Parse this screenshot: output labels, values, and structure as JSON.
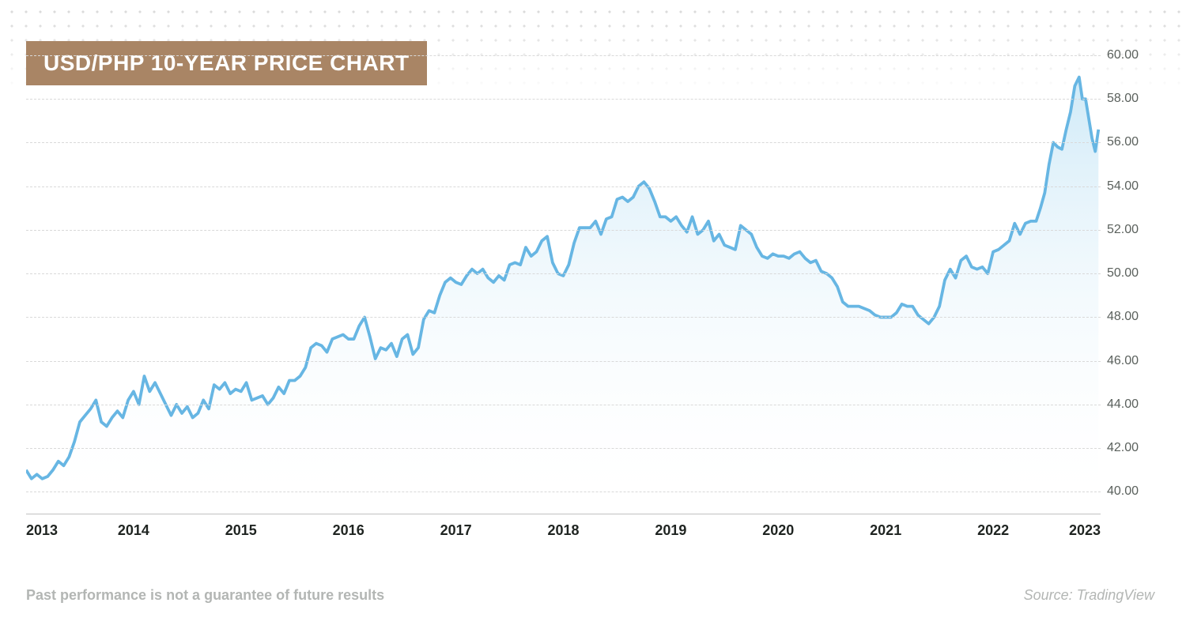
{
  "title": "USD/PHP 10-YEAR PRICE CHART",
  "title_badge_bg": "#a98565",
  "title_badge_color": "#ffffff",
  "title_fontsize": 28,
  "disclaimer": "Past performance is not a guarantee of future results",
  "source": "Source: TradingView",
  "chart": {
    "type": "area",
    "line_color": "#67b6e3",
    "line_width": 2.2,
    "fill_top": "#c7e6f6",
    "fill_bottom": "#ffffff",
    "grid_color": "#d9d9d9",
    "axis_color": "#c0c0c0",
    "ylabel_color": "#5a605c",
    "ylabel_fontsize": 16,
    "xlabel_color": "#1f2421",
    "xlabel_fontsize": 18,
    "background_color": "#ffffff",
    "ylim": [
      39,
      60
    ],
    "yticks": [
      40.0,
      42.0,
      44.0,
      46.0,
      48.0,
      50.0,
      52.0,
      54.0,
      56.0,
      58.0,
      60.0
    ],
    "xlim": [
      2013,
      2023
    ],
    "xticks": [
      2013,
      2014,
      2015,
      2016,
      2017,
      2018,
      2019,
      2020,
      2021,
      2022,
      2023
    ],
    "series": [
      {
        "x": 2013.0,
        "y": 41.0
      },
      {
        "x": 2013.05,
        "y": 40.6
      },
      {
        "x": 2013.1,
        "y": 40.8
      },
      {
        "x": 2013.15,
        "y": 40.6
      },
      {
        "x": 2013.2,
        "y": 40.7
      },
      {
        "x": 2013.25,
        "y": 41.0
      },
      {
        "x": 2013.3,
        "y": 41.4
      },
      {
        "x": 2013.35,
        "y": 41.2
      },
      {
        "x": 2013.4,
        "y": 41.6
      },
      {
        "x": 2013.45,
        "y": 42.3
      },
      {
        "x": 2013.5,
        "y": 43.2
      },
      {
        "x": 2013.55,
        "y": 43.5
      },
      {
        "x": 2013.6,
        "y": 43.8
      },
      {
        "x": 2013.65,
        "y": 44.2
      },
      {
        "x": 2013.7,
        "y": 43.2
      },
      {
        "x": 2013.75,
        "y": 43.0
      },
      {
        "x": 2013.8,
        "y": 43.4
      },
      {
        "x": 2013.85,
        "y": 43.7
      },
      {
        "x": 2013.9,
        "y": 43.4
      },
      {
        "x": 2013.95,
        "y": 44.2
      },
      {
        "x": 2014.0,
        "y": 44.6
      },
      {
        "x": 2014.05,
        "y": 44.0
      },
      {
        "x": 2014.1,
        "y": 45.3
      },
      {
        "x": 2014.15,
        "y": 44.6
      },
      {
        "x": 2014.2,
        "y": 45.0
      },
      {
        "x": 2014.25,
        "y": 44.5
      },
      {
        "x": 2014.3,
        "y": 44.0
      },
      {
        "x": 2014.35,
        "y": 43.5
      },
      {
        "x": 2014.4,
        "y": 44.0
      },
      {
        "x": 2014.45,
        "y": 43.6
      },
      {
        "x": 2014.5,
        "y": 43.9
      },
      {
        "x": 2014.55,
        "y": 43.4
      },
      {
        "x": 2014.6,
        "y": 43.6
      },
      {
        "x": 2014.65,
        "y": 44.2
      },
      {
        "x": 2014.7,
        "y": 43.8
      },
      {
        "x": 2014.75,
        "y": 44.9
      },
      {
        "x": 2014.8,
        "y": 44.7
      },
      {
        "x": 2014.85,
        "y": 45.0
      },
      {
        "x": 2014.9,
        "y": 44.5
      },
      {
        "x": 2014.95,
        "y": 44.7
      },
      {
        "x": 2015.0,
        "y": 44.6
      },
      {
        "x": 2015.05,
        "y": 45.0
      },
      {
        "x": 2015.1,
        "y": 44.2
      },
      {
        "x": 2015.15,
        "y": 44.3
      },
      {
        "x": 2015.2,
        "y": 44.4
      },
      {
        "x": 2015.25,
        "y": 44.0
      },
      {
        "x": 2015.3,
        "y": 44.3
      },
      {
        "x": 2015.35,
        "y": 44.8
      },
      {
        "x": 2015.4,
        "y": 44.5
      },
      {
        "x": 2015.45,
        "y": 45.1
      },
      {
        "x": 2015.5,
        "y": 45.1
      },
      {
        "x": 2015.55,
        "y": 45.3
      },
      {
        "x": 2015.6,
        "y": 45.7
      },
      {
        "x": 2015.65,
        "y": 46.6
      },
      {
        "x": 2015.7,
        "y": 46.8
      },
      {
        "x": 2015.75,
        "y": 46.7
      },
      {
        "x": 2015.8,
        "y": 46.4
      },
      {
        "x": 2015.85,
        "y": 47.0
      },
      {
        "x": 2015.9,
        "y": 47.1
      },
      {
        "x": 2015.95,
        "y": 47.2
      },
      {
        "x": 2016.0,
        "y": 47.0
      },
      {
        "x": 2016.05,
        "y": 47.0
      },
      {
        "x": 2016.1,
        "y": 47.6
      },
      {
        "x": 2016.15,
        "y": 48.0
      },
      {
        "x": 2016.2,
        "y": 47.1
      },
      {
        "x": 2016.25,
        "y": 46.1
      },
      {
        "x": 2016.3,
        "y": 46.6
      },
      {
        "x": 2016.35,
        "y": 46.5
      },
      {
        "x": 2016.4,
        "y": 46.8
      },
      {
        "x": 2016.45,
        "y": 46.2
      },
      {
        "x": 2016.5,
        "y": 47.0
      },
      {
        "x": 2016.55,
        "y": 47.2
      },
      {
        "x": 2016.6,
        "y": 46.3
      },
      {
        "x": 2016.65,
        "y": 46.6
      },
      {
        "x": 2016.7,
        "y": 47.9
      },
      {
        "x": 2016.75,
        "y": 48.3
      },
      {
        "x": 2016.8,
        "y": 48.2
      },
      {
        "x": 2016.85,
        "y": 49.0
      },
      {
        "x": 2016.9,
        "y": 49.6
      },
      {
        "x": 2016.95,
        "y": 49.8
      },
      {
        "x": 2017.0,
        "y": 49.6
      },
      {
        "x": 2017.05,
        "y": 49.5
      },
      {
        "x": 2017.1,
        "y": 49.9
      },
      {
        "x": 2017.15,
        "y": 50.2
      },
      {
        "x": 2017.2,
        "y": 50.0
      },
      {
        "x": 2017.25,
        "y": 50.2
      },
      {
        "x": 2017.3,
        "y": 49.8
      },
      {
        "x": 2017.35,
        "y": 49.6
      },
      {
        "x": 2017.4,
        "y": 49.9
      },
      {
        "x": 2017.45,
        "y": 49.7
      },
      {
        "x": 2017.5,
        "y": 50.4
      },
      {
        "x": 2017.55,
        "y": 50.5
      },
      {
        "x": 2017.6,
        "y": 50.4
      },
      {
        "x": 2017.65,
        "y": 51.2
      },
      {
        "x": 2017.7,
        "y": 50.8
      },
      {
        "x": 2017.75,
        "y": 51.0
      },
      {
        "x": 2017.8,
        "y": 51.5
      },
      {
        "x": 2017.85,
        "y": 51.7
      },
      {
        "x": 2017.9,
        "y": 50.5
      },
      {
        "x": 2017.95,
        "y": 50.0
      },
      {
        "x": 2018.0,
        "y": 49.9
      },
      {
        "x": 2018.05,
        "y": 50.4
      },
      {
        "x": 2018.1,
        "y": 51.4
      },
      {
        "x": 2018.15,
        "y": 52.1
      },
      {
        "x": 2018.2,
        "y": 52.1
      },
      {
        "x": 2018.25,
        "y": 52.1
      },
      {
        "x": 2018.3,
        "y": 52.4
      },
      {
        "x": 2018.35,
        "y": 51.8
      },
      {
        "x": 2018.4,
        "y": 52.5
      },
      {
        "x": 2018.45,
        "y": 52.6
      },
      {
        "x": 2018.5,
        "y": 53.4
      },
      {
        "x": 2018.55,
        "y": 53.5
      },
      {
        "x": 2018.6,
        "y": 53.3
      },
      {
        "x": 2018.65,
        "y": 53.5
      },
      {
        "x": 2018.7,
        "y": 54.0
      },
      {
        "x": 2018.75,
        "y": 54.2
      },
      {
        "x": 2018.8,
        "y": 53.9
      },
      {
        "x": 2018.85,
        "y": 53.3
      },
      {
        "x": 2018.9,
        "y": 52.6
      },
      {
        "x": 2018.95,
        "y": 52.6
      },
      {
        "x": 2019.0,
        "y": 52.4
      },
      {
        "x": 2019.05,
        "y": 52.6
      },
      {
        "x": 2019.1,
        "y": 52.2
      },
      {
        "x": 2019.15,
        "y": 51.9
      },
      {
        "x": 2019.2,
        "y": 52.6
      },
      {
        "x": 2019.25,
        "y": 51.8
      },
      {
        "x": 2019.3,
        "y": 52.0
      },
      {
        "x": 2019.35,
        "y": 52.4
      },
      {
        "x": 2019.4,
        "y": 51.5
      },
      {
        "x": 2019.45,
        "y": 51.8
      },
      {
        "x": 2019.5,
        "y": 51.3
      },
      {
        "x": 2019.55,
        "y": 51.2
      },
      {
        "x": 2019.6,
        "y": 51.1
      },
      {
        "x": 2019.65,
        "y": 52.2
      },
      {
        "x": 2019.7,
        "y": 52.0
      },
      {
        "x": 2019.75,
        "y": 51.8
      },
      {
        "x": 2019.8,
        "y": 51.2
      },
      {
        "x": 2019.85,
        "y": 50.8
      },
      {
        "x": 2019.9,
        "y": 50.7
      },
      {
        "x": 2019.95,
        "y": 50.9
      },
      {
        "x": 2020.0,
        "y": 50.8
      },
      {
        "x": 2020.05,
        "y": 50.8
      },
      {
        "x": 2020.1,
        "y": 50.7
      },
      {
        "x": 2020.15,
        "y": 50.9
      },
      {
        "x": 2020.2,
        "y": 51.0
      },
      {
        "x": 2020.25,
        "y": 50.7
      },
      {
        "x": 2020.3,
        "y": 50.5
      },
      {
        "x": 2020.35,
        "y": 50.6
      },
      {
        "x": 2020.4,
        "y": 50.1
      },
      {
        "x": 2020.45,
        "y": 50.0
      },
      {
        "x": 2020.5,
        "y": 49.8
      },
      {
        "x": 2020.55,
        "y": 49.4
      },
      {
        "x": 2020.6,
        "y": 48.7
      },
      {
        "x": 2020.65,
        "y": 48.5
      },
      {
        "x": 2020.7,
        "y": 48.5
      },
      {
        "x": 2020.75,
        "y": 48.5
      },
      {
        "x": 2020.8,
        "y": 48.4
      },
      {
        "x": 2020.85,
        "y": 48.3
      },
      {
        "x": 2020.9,
        "y": 48.1
      },
      {
        "x": 2020.95,
        "y": 48.0
      },
      {
        "x": 2021.0,
        "y": 48.0
      },
      {
        "x": 2021.05,
        "y": 48.0
      },
      {
        "x": 2021.1,
        "y": 48.2
      },
      {
        "x": 2021.15,
        "y": 48.6
      },
      {
        "x": 2021.2,
        "y": 48.5
      },
      {
        "x": 2021.25,
        "y": 48.5
      },
      {
        "x": 2021.3,
        "y": 48.1
      },
      {
        "x": 2021.35,
        "y": 47.9
      },
      {
        "x": 2021.4,
        "y": 47.7
      },
      {
        "x": 2021.45,
        "y": 48.0
      },
      {
        "x": 2021.5,
        "y": 48.5
      },
      {
        "x": 2021.55,
        "y": 49.7
      },
      {
        "x": 2021.6,
        "y": 50.2
      },
      {
        "x": 2021.65,
        "y": 49.8
      },
      {
        "x": 2021.7,
        "y": 50.6
      },
      {
        "x": 2021.75,
        "y": 50.8
      },
      {
        "x": 2021.8,
        "y": 50.3
      },
      {
        "x": 2021.85,
        "y": 50.2
      },
      {
        "x": 2021.9,
        "y": 50.3
      },
      {
        "x": 2021.95,
        "y": 50.0
      },
      {
        "x": 2022.0,
        "y": 51.0
      },
      {
        "x": 2022.05,
        "y": 51.1
      },
      {
        "x": 2022.1,
        "y": 51.3
      },
      {
        "x": 2022.15,
        "y": 51.5
      },
      {
        "x": 2022.2,
        "y": 52.3
      },
      {
        "x": 2022.25,
        "y": 51.8
      },
      {
        "x": 2022.3,
        "y": 52.3
      },
      {
        "x": 2022.35,
        "y": 52.4
      },
      {
        "x": 2022.4,
        "y": 52.4
      },
      {
        "x": 2022.44,
        "y": 53.0
      },
      {
        "x": 2022.48,
        "y": 53.7
      },
      {
        "x": 2022.52,
        "y": 55.0
      },
      {
        "x": 2022.56,
        "y": 56.0
      },
      {
        "x": 2022.6,
        "y": 55.8
      },
      {
        "x": 2022.64,
        "y": 55.7
      },
      {
        "x": 2022.68,
        "y": 56.6
      },
      {
        "x": 2022.72,
        "y": 57.4
      },
      {
        "x": 2022.76,
        "y": 58.6
      },
      {
        "x": 2022.8,
        "y": 59.0
      },
      {
        "x": 2022.83,
        "y": 58.0
      },
      {
        "x": 2022.86,
        "y": 58.0
      },
      {
        "x": 2022.89,
        "y": 57.1
      },
      {
        "x": 2022.92,
        "y": 56.2
      },
      {
        "x": 2022.95,
        "y": 55.6
      },
      {
        "x": 2022.98,
        "y": 56.6
      }
    ]
  }
}
